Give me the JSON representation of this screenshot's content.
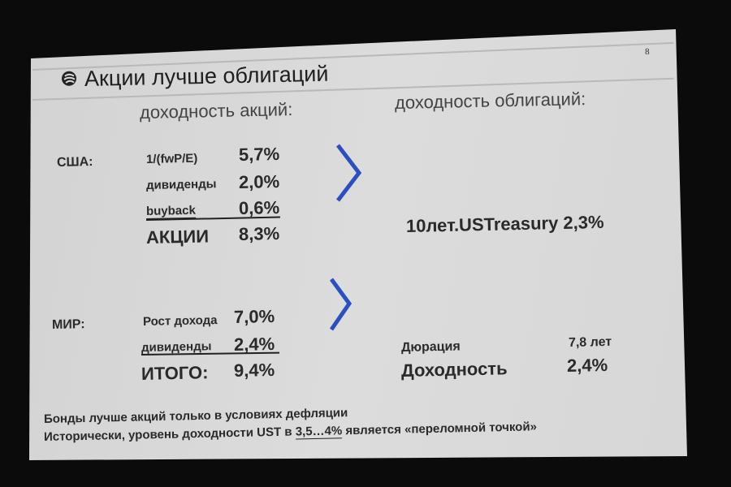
{
  "slide": {
    "page_number": "8",
    "title": "Акции лучше облигаций",
    "logo_icon": "company-logo-icon",
    "left_header": "доходность акций:",
    "right_header": "доходность облигаций:",
    "usa": {
      "label": "США:",
      "rows": [
        {
          "label": "1/(fwP/E)",
          "value": "5,7%"
        },
        {
          "label": "дивиденды",
          "value": "2,0%"
        },
        {
          "label": "buyback",
          "value": "0,6%"
        }
      ],
      "total_label": "АКЦИИ",
      "total_value": "8,3%"
    },
    "usa_bond": "10лет.USTreasury 2,3%",
    "world": {
      "label": "МИР:",
      "rows": [
        {
          "label": "Рост дохода",
          "value": "7,0%"
        },
        {
          "label": "дивиденды",
          "value": "2,4%"
        }
      ],
      "total_label": "ИТОГО:",
      "total_value": "9,4%"
    },
    "world_bond": {
      "duration_label": "Дюрация",
      "duration_value": "7,8 лет",
      "yield_label": "Доходность",
      "yield_value": "2,4%"
    },
    "chevron_color": "#2a4fc0",
    "footer_line1": "Бонды лучше акций только в условиях дефляции",
    "footer_line2_pre": "Исторически, уровень доходности UST в ",
    "footer_line2_underlined": "3,5…4%",
    "footer_line2_post": " является «переломной точкой»"
  }
}
